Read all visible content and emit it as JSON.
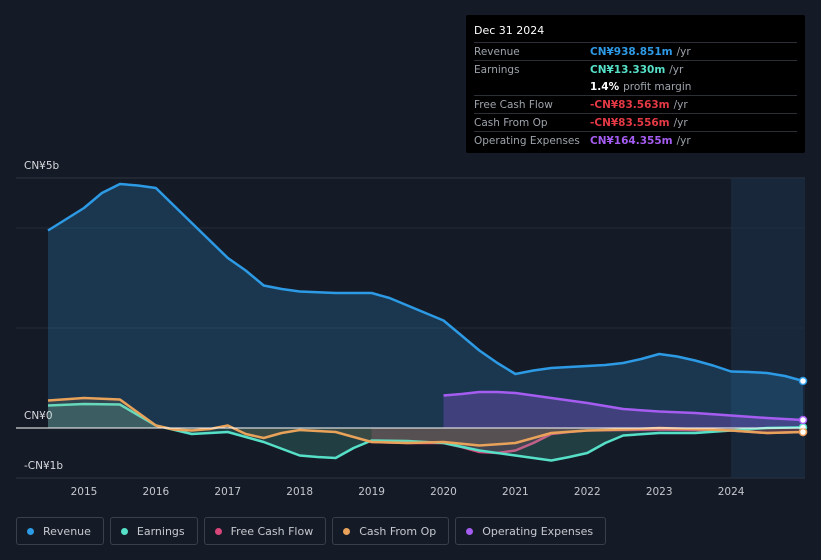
{
  "tooltip": {
    "date": "Dec 31 2024",
    "rows": [
      {
        "label": "Revenue",
        "value": "CN¥938.851m",
        "unit": "/yr",
        "color": "#2d9ae5"
      },
      {
        "label": "Earnings",
        "value": "CN¥13.330m",
        "unit": "/yr",
        "color": "#56e0c8"
      },
      {
        "label": "",
        "value": "1.4%",
        "unit": "profit margin",
        "color": "#ffffff"
      },
      {
        "label": "Free Cash Flow",
        "value": "-CN¥83.563m",
        "unit": "/yr",
        "color": "#e53945"
      },
      {
        "label": "Cash From Op",
        "value": "-CN¥83.556m",
        "unit": "/yr",
        "color": "#e53945"
      },
      {
        "label": "Operating Expenses",
        "value": "CN¥164.355m",
        "unit": "/yr",
        "color": "#a55cf0"
      }
    ]
  },
  "legend": [
    {
      "label": "Revenue",
      "color": "#2d9ae5"
    },
    {
      "label": "Earnings",
      "color": "#56e0c8"
    },
    {
      "label": "Free Cash Flow",
      "color": "#d9467a"
    },
    {
      "label": "Cash From Op",
      "color": "#e8a25a"
    },
    {
      "label": "Operating Expenses",
      "color": "#a55cf0"
    }
  ],
  "chart_data": {
    "type": "area",
    "y_tick_labels": {
      "top": "CN¥5b",
      "zero": "CN¥0",
      "bottom": "-CN¥1b"
    },
    "ylim": [
      -1,
      5
    ],
    "xlim": [
      2014.5,
      2025.0
    ],
    "x_ticks": [
      2015,
      2016,
      2017,
      2018,
      2019,
      2020,
      2021,
      2022,
      2023,
      2024
    ],
    "x_tick_labels": [
      "2015",
      "2016",
      "2017",
      "2018",
      "2019",
      "2020",
      "2021",
      "2022",
      "2023",
      "2024"
    ],
    "highlight_start": 2024.0,
    "units": "CN¥ billions",
    "series": [
      {
        "name": "Revenue",
        "color": "#2d9ae5",
        "x": [
          2014.5,
          2015.0,
          2015.25,
          2015.5,
          2015.75,
          2016.0,
          2016.25,
          2016.5,
          2016.75,
          2017.0,
          2017.25,
          2017.5,
          2017.75,
          2018.0,
          2018.5,
          2019.0,
          2019.25,
          2019.5,
          2019.75,
          2020.0,
          2020.25,
          2020.5,
          2020.75,
          2021.0,
          2021.25,
          2021.5,
          2021.75,
          2022.0,
          2022.25,
          2022.5,
          2022.75,
          2023.0,
          2023.25,
          2023.5,
          2023.75,
          2024.0,
          2024.25,
          2024.5,
          2024.75,
          2025.0
        ],
        "values": [
          3.95,
          4.4,
          4.7,
          4.88,
          4.85,
          4.8,
          4.45,
          4.1,
          3.75,
          3.4,
          3.15,
          2.85,
          2.78,
          2.73,
          2.7,
          2.7,
          2.6,
          2.45,
          2.3,
          2.15,
          1.85,
          1.55,
          1.3,
          1.08,
          1.15,
          1.2,
          1.22,
          1.24,
          1.26,
          1.3,
          1.38,
          1.48,
          1.43,
          1.35,
          1.25,
          1.13,
          1.12,
          1.1,
          1.04,
          0.94
        ]
      },
      {
        "name": "Earnings",
        "color": "#56e0c8",
        "x": [
          2014.5,
          2015.0,
          2015.5,
          2016.0,
          2016.5,
          2017.0,
          2017.5,
          2018.0,
          2018.25,
          2018.5,
          2018.75,
          2019.0,
          2019.5,
          2020.0,
          2020.5,
          2021.0,
          2021.25,
          2021.5,
          2021.75,
          2022.0,
          2022.25,
          2022.5,
          2023.0,
          2023.5,
          2024.0,
          2024.5,
          2025.0
        ],
        "values": [
          0.45,
          0.48,
          0.47,
          0.05,
          -0.12,
          -0.08,
          -0.28,
          -0.55,
          -0.58,
          -0.6,
          -0.4,
          -0.25,
          -0.26,
          -0.3,
          -0.45,
          -0.55,
          -0.6,
          -0.65,
          -0.58,
          -0.5,
          -0.3,
          -0.15,
          -0.1,
          -0.1,
          -0.05,
          0.0,
          0.013
        ]
      },
      {
        "name": "Free Cash Flow",
        "color": "#d9467a",
        "x": [
          2019.0,
          2019.5,
          2020.0,
          2020.25,
          2020.5,
          2020.75,
          2021.0,
          2021.25,
          2021.5,
          2021.75,
          2022.0,
          2022.5,
          2023.0,
          2023.5,
          2024.0,
          2024.5,
          2025.0
        ],
        "values": [
          -0.28,
          -0.3,
          -0.3,
          -0.38,
          -0.48,
          -0.5,
          -0.45,
          -0.3,
          -0.12,
          -0.08,
          -0.05,
          -0.04,
          -0.03,
          -0.04,
          -0.05,
          -0.1,
          -0.08
        ]
      },
      {
        "name": "Cash From Op",
        "color": "#e8a25a",
        "x": [
          2014.5,
          2015.0,
          2015.5,
          2016.0,
          2016.25,
          2016.5,
          2016.75,
          2017.0,
          2017.25,
          2017.5,
          2017.75,
          2018.0,
          2018.5,
          2019.0,
          2019.5,
          2020.0,
          2020.5,
          2021.0,
          2021.25,
          2021.5,
          2022.0,
          2022.5,
          2023.0,
          2023.5,
          2024.0,
          2024.5,
          2025.0
        ],
        "values": [
          0.55,
          0.6,
          0.57,
          0.05,
          -0.03,
          -0.05,
          -0.02,
          0.05,
          -0.12,
          -0.2,
          -0.1,
          -0.04,
          -0.08,
          -0.28,
          -0.3,
          -0.28,
          -0.35,
          -0.3,
          -0.2,
          -0.1,
          -0.05,
          -0.03,
          0.0,
          -0.02,
          -0.05,
          -0.1,
          -0.08
        ]
      },
      {
        "name": "Operating Expenses",
        "color": "#a55cf0",
        "x": [
          2020.0,
          2020.25,
          2020.5,
          2020.75,
          2021.0,
          2021.5,
          2022.0,
          2022.5,
          2023.0,
          2023.5,
          2024.0,
          2024.5,
          2025.0
        ],
        "values": [
          0.65,
          0.68,
          0.72,
          0.72,
          0.7,
          0.6,
          0.5,
          0.38,
          0.33,
          0.3,
          0.25,
          0.2,
          0.16
        ]
      }
    ]
  }
}
